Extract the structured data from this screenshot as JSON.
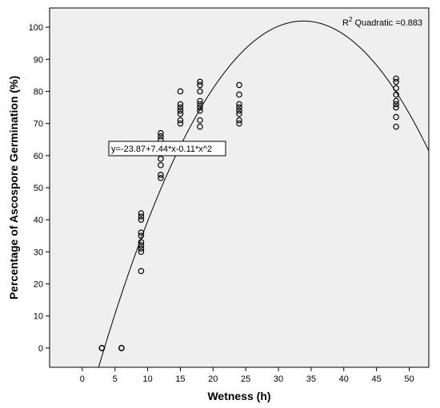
{
  "chart_data": {
    "type": "scatter",
    "title": "",
    "xlabel": "Wetness (h)",
    "ylabel": "Percentage of Ascospore Germination (%)",
    "xlim": [
      -5,
      53
    ],
    "ylim": [
      -6,
      106
    ],
    "xticks": [
      0,
      5,
      10,
      15,
      20,
      25,
      30,
      35,
      40,
      45,
      50
    ],
    "yticks": [
      0,
      10,
      20,
      30,
      40,
      50,
      60,
      70,
      80,
      90,
      100
    ],
    "grid": false,
    "background": "#efefef",
    "marker_color": "#000000",
    "curve_color": "#000000",
    "r2_label": "R",
    "r2_superscript": "2",
    "r2_text": " Quadratic =0.883",
    "equation_label": "y=-23.87+7.44*x-0.11*x^2",
    "fit": {
      "type": "quadratic",
      "intercept": -23.87,
      "b1": 7.44,
      "b2": -0.11
    },
    "points": [
      {
        "x": 3,
        "y": 0
      },
      {
        "x": 3,
        "y": 0
      },
      {
        "x": 3,
        "y": 0
      },
      {
        "x": 6,
        "y": 0
      },
      {
        "x": 6,
        "y": 0
      },
      {
        "x": 6,
        "y": 0
      },
      {
        "x": 9,
        "y": 42
      },
      {
        "x": 9,
        "y": 41
      },
      {
        "x": 9,
        "y": 40
      },
      {
        "x": 9,
        "y": 36
      },
      {
        "x": 9,
        "y": 35
      },
      {
        "x": 9,
        "y": 33
      },
      {
        "x": 9,
        "y": 32
      },
      {
        "x": 9,
        "y": 31
      },
      {
        "x": 9,
        "y": 30
      },
      {
        "x": 9,
        "y": 24
      },
      {
        "x": 12,
        "y": 67
      },
      {
        "x": 12,
        "y": 66
      },
      {
        "x": 12,
        "y": 65
      },
      {
        "x": 12,
        "y": 62
      },
      {
        "x": 12,
        "y": 59
      },
      {
        "x": 12,
        "y": 57
      },
      {
        "x": 12,
        "y": 54
      },
      {
        "x": 12,
        "y": 53
      },
      {
        "x": 15,
        "y": 80
      },
      {
        "x": 15,
        "y": 76
      },
      {
        "x": 15,
        "y": 75
      },
      {
        "x": 15,
        "y": 74
      },
      {
        "x": 15,
        "y": 73
      },
      {
        "x": 15,
        "y": 71
      },
      {
        "x": 15,
        "y": 70
      },
      {
        "x": 18,
        "y": 83
      },
      {
        "x": 18,
        "y": 82
      },
      {
        "x": 18,
        "y": 80
      },
      {
        "x": 18,
        "y": 77
      },
      {
        "x": 18,
        "y": 76
      },
      {
        "x": 18,
        "y": 75
      },
      {
        "x": 18,
        "y": 74
      },
      {
        "x": 18,
        "y": 71
      },
      {
        "x": 18,
        "y": 69
      },
      {
        "x": 24,
        "y": 82
      },
      {
        "x": 24,
        "y": 79
      },
      {
        "x": 24,
        "y": 76
      },
      {
        "x": 24,
        "y": 75
      },
      {
        "x": 24,
        "y": 74
      },
      {
        "x": 24,
        "y": 73
      },
      {
        "x": 24,
        "y": 71
      },
      {
        "x": 24,
        "y": 70
      },
      {
        "x": 48,
        "y": 84
      },
      {
        "x": 48,
        "y": 83
      },
      {
        "x": 48,
        "y": 81
      },
      {
        "x": 48,
        "y": 79
      },
      {
        "x": 48,
        "y": 77
      },
      {
        "x": 48,
        "y": 76
      },
      {
        "x": 48,
        "y": 75
      },
      {
        "x": 48,
        "y": 72
      },
      {
        "x": 48,
        "y": 69
      }
    ]
  }
}
